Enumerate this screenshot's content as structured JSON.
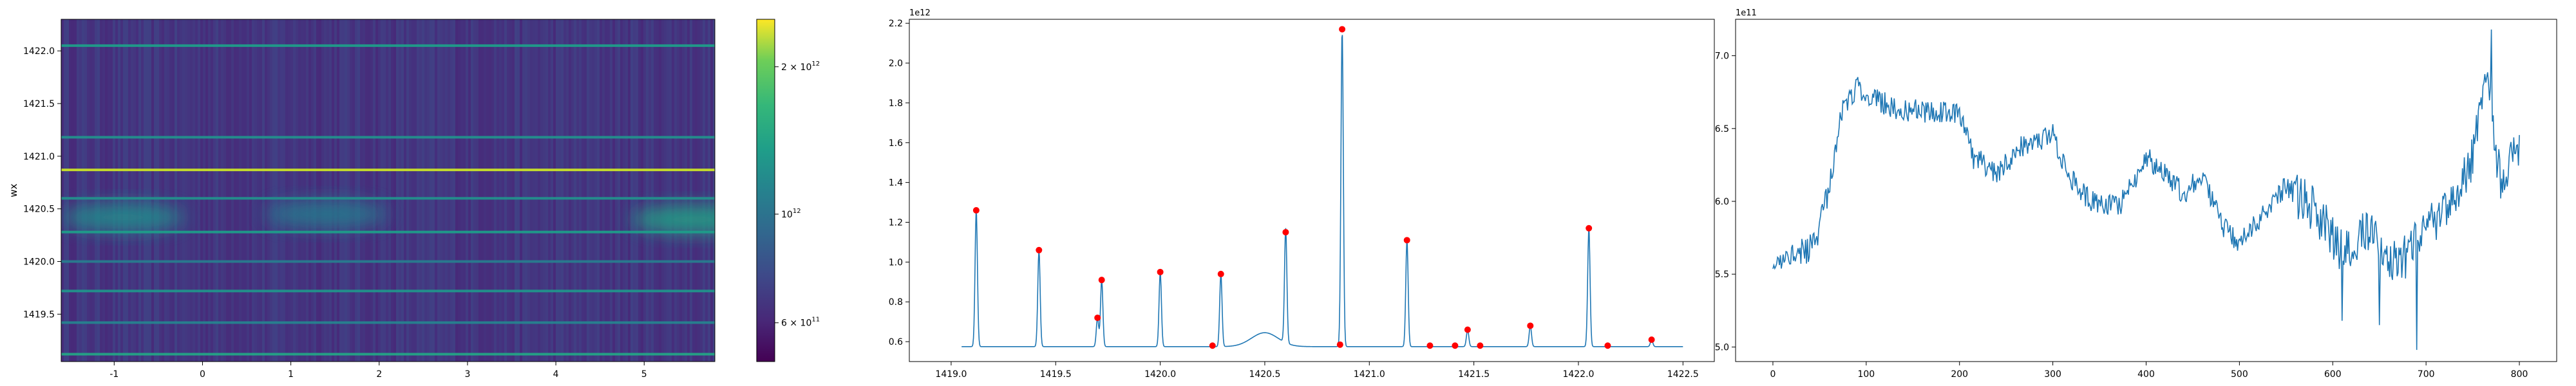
{
  "chart_data": [
    {
      "type": "heatmap",
      "ylabel": "wx",
      "xlim": [
        -1.6,
        5.8
      ],
      "ylim": [
        1419.05,
        1422.3
      ],
      "xticks": [
        "-1",
        "0",
        "1",
        "2",
        "3",
        "4",
        "5"
      ],
      "xtick_values": [
        -1,
        0,
        1,
        2,
        3,
        4,
        5
      ],
      "yticks": [
        "1419.5",
        "1420.0",
        "1420.5",
        "1421.0",
        "1421.5",
        "1422.0"
      ],
      "ytick_values": [
        1419.5,
        1420.0,
        1420.5,
        1421.0,
        1421.5,
        1422.0
      ],
      "colormap": "viridis",
      "color_scale": "log",
      "colorbar": {
        "range": [
          500000000000.0,
          2500000000000.0
        ],
        "ticks": [
          {
            "value": 600000000000.0,
            "mantissa": "6 × 10",
            "exp": "11"
          },
          {
            "value": 1000000000000.0,
            "mantissa": "10",
            "exp": "12"
          },
          {
            "value": 2000000000000.0,
            "mantissa": "2 × 10",
            "exp": "12"
          }
        ]
      },
      "bright_rows": [
        {
          "wx": 1422.05,
          "level": 0.55
        },
        {
          "wx": 1421.18,
          "level": 0.5
        },
        {
          "wx": 1420.87,
          "level": 0.92
        },
        {
          "wx": 1420.6,
          "level": 0.5
        },
        {
          "wx": 1420.28,
          "level": 0.55
        },
        {
          "wx": 1420.0,
          "level": 0.42
        },
        {
          "wx": 1419.72,
          "level": 0.52
        },
        {
          "wx": 1419.42,
          "level": 0.45
        },
        {
          "wx": 1419.12,
          "level": 0.58
        }
      ],
      "blobs": [
        {
          "x": -0.9,
          "wx": 1420.42,
          "level": 0.5
        },
        {
          "x": 1.4,
          "wx": 1420.45,
          "level": 0.42
        },
        {
          "x": 5.55,
          "wx": 1420.4,
          "level": 0.58
        }
      ]
    },
    {
      "type": "line",
      "offset_text": "1e12",
      "xlim": [
        1418.8,
        1422.65
      ],
      "ylim": [
        0.5,
        2.22
      ],
      "xticks": [
        "1419.0",
        "1419.5",
        "1420.0",
        "1420.5",
        "1421.0",
        "1421.5",
        "1422.0",
        "1422.5"
      ],
      "xtick_values": [
        1419.0,
        1419.5,
        1420.0,
        1420.5,
        1421.0,
        1421.5,
        1422.0,
        1422.5
      ],
      "yticks": [
        "0.6",
        "0.8",
        "1.0",
        "1.2",
        "1.4",
        "1.6",
        "1.8",
        "2.0",
        "2.2"
      ],
      "ytick_values": [
        0.6,
        0.8,
        1.0,
        1.2,
        1.4,
        1.6,
        1.8,
        2.0,
        2.2
      ],
      "line_color": "#1f77b4",
      "marker_color": "#ff0000",
      "baseline": 0.575,
      "x_start": 1419.05,
      "x_end": 1422.5,
      "peaks": [
        {
          "x": 1419.12,
          "y": 1.26
        },
        {
          "x": 1419.42,
          "y": 1.06
        },
        {
          "x": 1419.7,
          "y": 0.72
        },
        {
          "x": 1419.72,
          "y": 0.91
        },
        {
          "x": 1420.0,
          "y": 0.95
        },
        {
          "x": 1420.25,
          "y": 0.58
        },
        {
          "x": 1420.29,
          "y": 0.94
        },
        {
          "x": 1420.6,
          "y": 1.15
        },
        {
          "x": 1420.86,
          "y": 0.585
        },
        {
          "x": 1420.87,
          "y": 2.17
        },
        {
          "x": 1421.18,
          "y": 1.11
        },
        {
          "x": 1421.29,
          "y": 0.58
        },
        {
          "x": 1421.41,
          "y": 0.58
        },
        {
          "x": 1421.47,
          "y": 0.66
        },
        {
          "x": 1421.53,
          "y": 0.58
        },
        {
          "x": 1421.77,
          "y": 0.68
        },
        {
          "x": 1422.05,
          "y": 1.17
        },
        {
          "x": 1422.14,
          "y": 0.58
        },
        {
          "x": 1422.35,
          "y": 0.61
        }
      ],
      "bump": {
        "x": 1420.5,
        "y": 0.645
      }
    },
    {
      "type": "line",
      "offset_text": "1e11",
      "xlim": [
        -40,
        840
      ],
      "ylim": [
        4.9,
        7.25
      ],
      "xticks": [
        "0",
        "100",
        "200",
        "300",
        "400",
        "500",
        "600",
        "700",
        "800"
      ],
      "xtick_values": [
        0,
        100,
        200,
        300,
        400,
        500,
        600,
        700,
        800
      ],
      "yticks": [
        "5.0",
        "5.5",
        "6.0",
        "6.5",
        "7.0"
      ],
      "ytick_values": [
        5.0,
        5.5,
        6.0,
        6.5,
        7.0
      ],
      "line_color": "#1f77b4",
      "x_end": 800,
      "trend": [
        [
          0,
          5.5
        ],
        [
          15,
          5.65
        ],
        [
          30,
          5.65
        ],
        [
          45,
          5.7
        ],
        [
          60,
          6.1
        ],
        [
          75,
          6.65
        ],
        [
          90,
          6.78
        ],
        [
          110,
          6.7
        ],
        [
          140,
          6.62
        ],
        [
          170,
          6.62
        ],
        [
          200,
          6.6
        ],
        [
          215,
          6.3
        ],
        [
          240,
          6.2
        ],
        [
          270,
          6.4
        ],
        [
          300,
          6.45
        ],
        [
          320,
          6.15
        ],
        [
          340,
          6.0
        ],
        [
          370,
          5.95
        ],
        [
          400,
          6.3
        ],
        [
          420,
          6.2
        ],
        [
          440,
          6.05
        ],
        [
          460,
          6.2
        ],
        [
          480,
          5.85
        ],
        [
          500,
          5.7
        ],
        [
          525,
          5.9
        ],
        [
          550,
          6.1
        ],
        [
          580,
          5.95
        ],
        [
          610,
          5.65
        ],
        [
          640,
          5.8
        ],
        [
          670,
          5.55
        ],
        [
          700,
          5.8
        ],
        [
          730,
          6.0
        ],
        [
          750,
          6.3
        ],
        [
          765,
          6.9
        ],
        [
          780,
          6.1
        ],
        [
          800,
          6.4
        ]
      ],
      "features": [
        {
          "x": 770,
          "y": 7.18
        },
        {
          "x": 690,
          "y": 4.98
        },
        {
          "x": 610,
          "y": 5.18
        },
        {
          "x": 650,
          "y": 5.15
        }
      ]
    }
  ]
}
